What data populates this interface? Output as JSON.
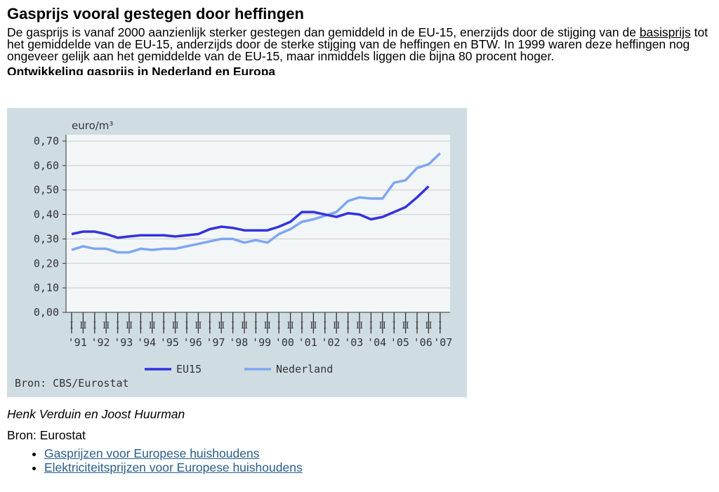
{
  "article": {
    "title": "Gasprijs vooral gestegen door heffingen",
    "intro_before": "De gasprijs is vanaf 2000 aanzienlijk sterker gestegen dan gemiddeld in de EU-15, enerzijds door de stijging van de ",
    "intro_link": "basisprijs",
    "intro_after": " tot het gemiddelde van de EU-15, anderzijds door de sterke stijging van de heffingen en BTW. In 1999 waren deze heffingen nog ongeveer gelijk aan het gemiddelde van de EU-15, maar inmiddels liggen die bijna 80 procent hoger.",
    "chart_heading": "Ontwikkeling gasprijs in Nederland en Europa",
    "author": "Henk Verduin en Joost Huurman",
    "source": "Bron: Eurostat",
    "links": [
      "Gasprijzen voor Europese huishoudens",
      "Elektriciteitsprijzen voor Europese huishoudens"
    ]
  },
  "chart_data": {
    "type": "line",
    "unit_label": "euro/m³",
    "source_note": "Bron: CBS/Eurostat",
    "ylim": [
      0,
      0.7
    ],
    "y_ticks": [
      "0,00",
      "0,10",
      "0,20",
      "0,30",
      "0,40",
      "0,50",
      "0,60",
      "0,70"
    ],
    "grid": true,
    "legend_position": "bottom",
    "year_labels": [
      "'91",
      "'92",
      "'93",
      "'94",
      "'95",
      "'96",
      "'97",
      "'98",
      "'99",
      "'00",
      "'01",
      "'02",
      "'03",
      "'04",
      "'05",
      "'06",
      "'07"
    ],
    "half_labels": [
      "I",
      "II"
    ],
    "x": [
      "1991-I",
      "1991-II",
      "1992-I",
      "1992-II",
      "1993-I",
      "1993-II",
      "1994-I",
      "1994-II",
      "1995-I",
      "1995-II",
      "1996-I",
      "1996-II",
      "1997-I",
      "1997-II",
      "1998-I",
      "1998-II",
      "1999-I",
      "1999-II",
      "2000-I",
      "2000-II",
      "2001-I",
      "2001-II",
      "2002-I",
      "2002-II",
      "2003-I",
      "2003-II",
      "2004-I",
      "2004-II",
      "2005-I",
      "2005-II",
      "2006-I",
      "2006-II",
      "2007-I"
    ],
    "series": [
      {
        "name": "EU15",
        "color": "#3333dd",
        "values": [
          0.32,
          0.33,
          0.33,
          0.32,
          0.305,
          0.31,
          0.315,
          0.315,
          0.315,
          0.31,
          0.315,
          0.32,
          0.34,
          0.35,
          0.345,
          0.335,
          0.335,
          0.335,
          0.35,
          0.37,
          0.41,
          0.41,
          0.4,
          0.39,
          0.405,
          0.4,
          0.38,
          0.39,
          0.41,
          0.43,
          0.47,
          0.515,
          null
        ]
      },
      {
        "name": "Nederland",
        "color": "#7fa6f0",
        "values": [
          0.255,
          0.27,
          0.26,
          0.26,
          0.245,
          0.245,
          0.26,
          0.255,
          0.26,
          0.26,
          0.27,
          0.28,
          0.29,
          0.3,
          0.3,
          0.285,
          0.295,
          0.285,
          0.32,
          0.34,
          0.37,
          0.38,
          0.395,
          0.41,
          0.455,
          0.47,
          0.465,
          0.465,
          0.53,
          0.54,
          0.59,
          0.605,
          0.65
        ]
      }
    ]
  }
}
